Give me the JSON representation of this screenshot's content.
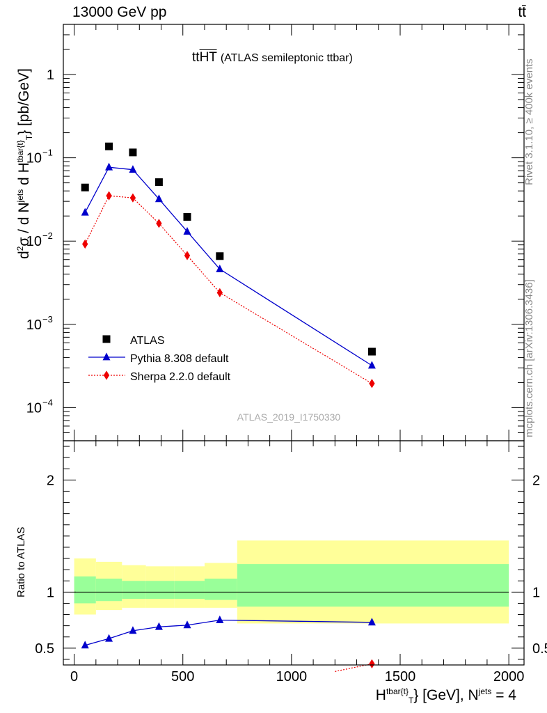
{
  "header": {
    "energy_label": "13000 GeV pp",
    "process_label": "tt̄"
  },
  "side_labels": {
    "rivet": "Rivet 3.1.10, ≥ 400k events",
    "mcplots": "mcplots.cern.ch [arXiv:1306.3436]"
  },
  "plot_title": {
    "main": "ttHT",
    "sub": "(ATLAS semileptonic ttbar)"
  },
  "watermark": "ATLAS_2019_I1750330",
  "axes": {
    "main_y": {
      "prefix": "d",
      "sigma": "σ / d N",
      "jets": "jets",
      "dH": " d H",
      "sub_T": "T",
      "sup_tbar": "tbar{t}",
      "unit": "} [pb/GeV]",
      "two": "2"
    },
    "ratio_y": "Ratio to ATLAS",
    "x": {
      "H": "H",
      "sub_T": "T",
      "sup_tbar": "tbar{t}",
      "unit": "} [GeV], N",
      "sup_jets": "jets",
      "eq": " = 4"
    }
  },
  "legend": {
    "atlas": "ATLAS",
    "pythia": "Pythia 8.308 default",
    "sherpa": "Sherpa 2.2.0 default"
  },
  "colors": {
    "atlas": "#000000",
    "pythia": "#0000cc",
    "sherpa": "#ee0000",
    "band_outer": "#ffff99",
    "band_inner": "#99ff99"
  },
  "chart_data": {
    "type": "scatter",
    "xlim": [
      -50,
      2070
    ],
    "main": {
      "y_scale": "log",
      "ylim": [
        4e-05,
        4.0
      ],
      "y_ticks": [
        {
          "value": 1,
          "label": "1",
          "exp": ""
        },
        {
          "value": 0.1,
          "label": "10",
          "exp": "−1"
        },
        {
          "value": 0.01,
          "label": "10",
          "exp": "−2"
        },
        {
          "value": 0.001,
          "label": "10",
          "exp": "−3"
        },
        {
          "value": 0.0001,
          "label": "10",
          "exp": "−4"
        }
      ]
    },
    "ratio": {
      "ylim": [
        0.35,
        2.35
      ],
      "y_ticks": [
        0.5,
        1,
        2
      ],
      "y_tick_labels": [
        "0.5",
        "1",
        "2"
      ]
    },
    "x_ticks": [
      0,
      500,
      1000,
      1500,
      2000
    ],
    "x_tick_labels": [
      "0",
      "500",
      "1000",
      "1500",
      "2000"
    ],
    "x": [
      50,
      160,
      270,
      390,
      520,
      670,
      1370
    ],
    "series": [
      {
        "name": "ATLAS",
        "marker": "square",
        "values": [
          0.044,
          0.137,
          0.116,
          0.051,
          0.0195,
          0.0066,
          0.00047
        ]
      },
      {
        "name": "Pythia 8.308 default",
        "marker": "triangle",
        "line": "solid",
        "values": [
          0.022,
          0.077,
          0.072,
          0.032,
          0.013,
          0.0046,
          0.00032
        ]
      },
      {
        "name": "Sherpa 2.2.0 default",
        "marker": "diamond",
        "line": "dotted",
        "values": [
          0.0092,
          0.035,
          0.033,
          0.0163,
          0.0067,
          0.0024,
          0.000195
        ]
      }
    ],
    "ratio_series": [
      {
        "name": "Pythia 8.308 default",
        "values": [
          0.525,
          0.585,
          0.655,
          0.69,
          0.705,
          0.75,
          0.73
        ]
      },
      {
        "name": "Sherpa 2.2.0 default",
        "values": [
          null,
          null,
          null,
          null,
          null,
          null,
          0.36
        ]
      }
    ],
    "bands": {
      "bins": [
        [
          0,
          100
        ],
        [
          100,
          220
        ],
        [
          220,
          330
        ],
        [
          330,
          460
        ],
        [
          460,
          600
        ],
        [
          600,
          750
        ],
        [
          750,
          2000
        ]
      ],
      "inner": [
        [
          0.9,
          1.14
        ],
        [
          0.92,
          1.12
        ],
        [
          0.94,
          1.1
        ],
        [
          0.94,
          1.1
        ],
        [
          0.94,
          1.1
        ],
        [
          0.93,
          1.12
        ],
        [
          0.87,
          1.25
        ]
      ],
      "outer": [
        [
          0.8,
          1.3
        ],
        [
          0.84,
          1.27
        ],
        [
          0.86,
          1.24
        ],
        [
          0.86,
          1.23
        ],
        [
          0.86,
          1.23
        ],
        [
          0.86,
          1.26
        ],
        [
          0.72,
          1.46
        ]
      ]
    }
  }
}
